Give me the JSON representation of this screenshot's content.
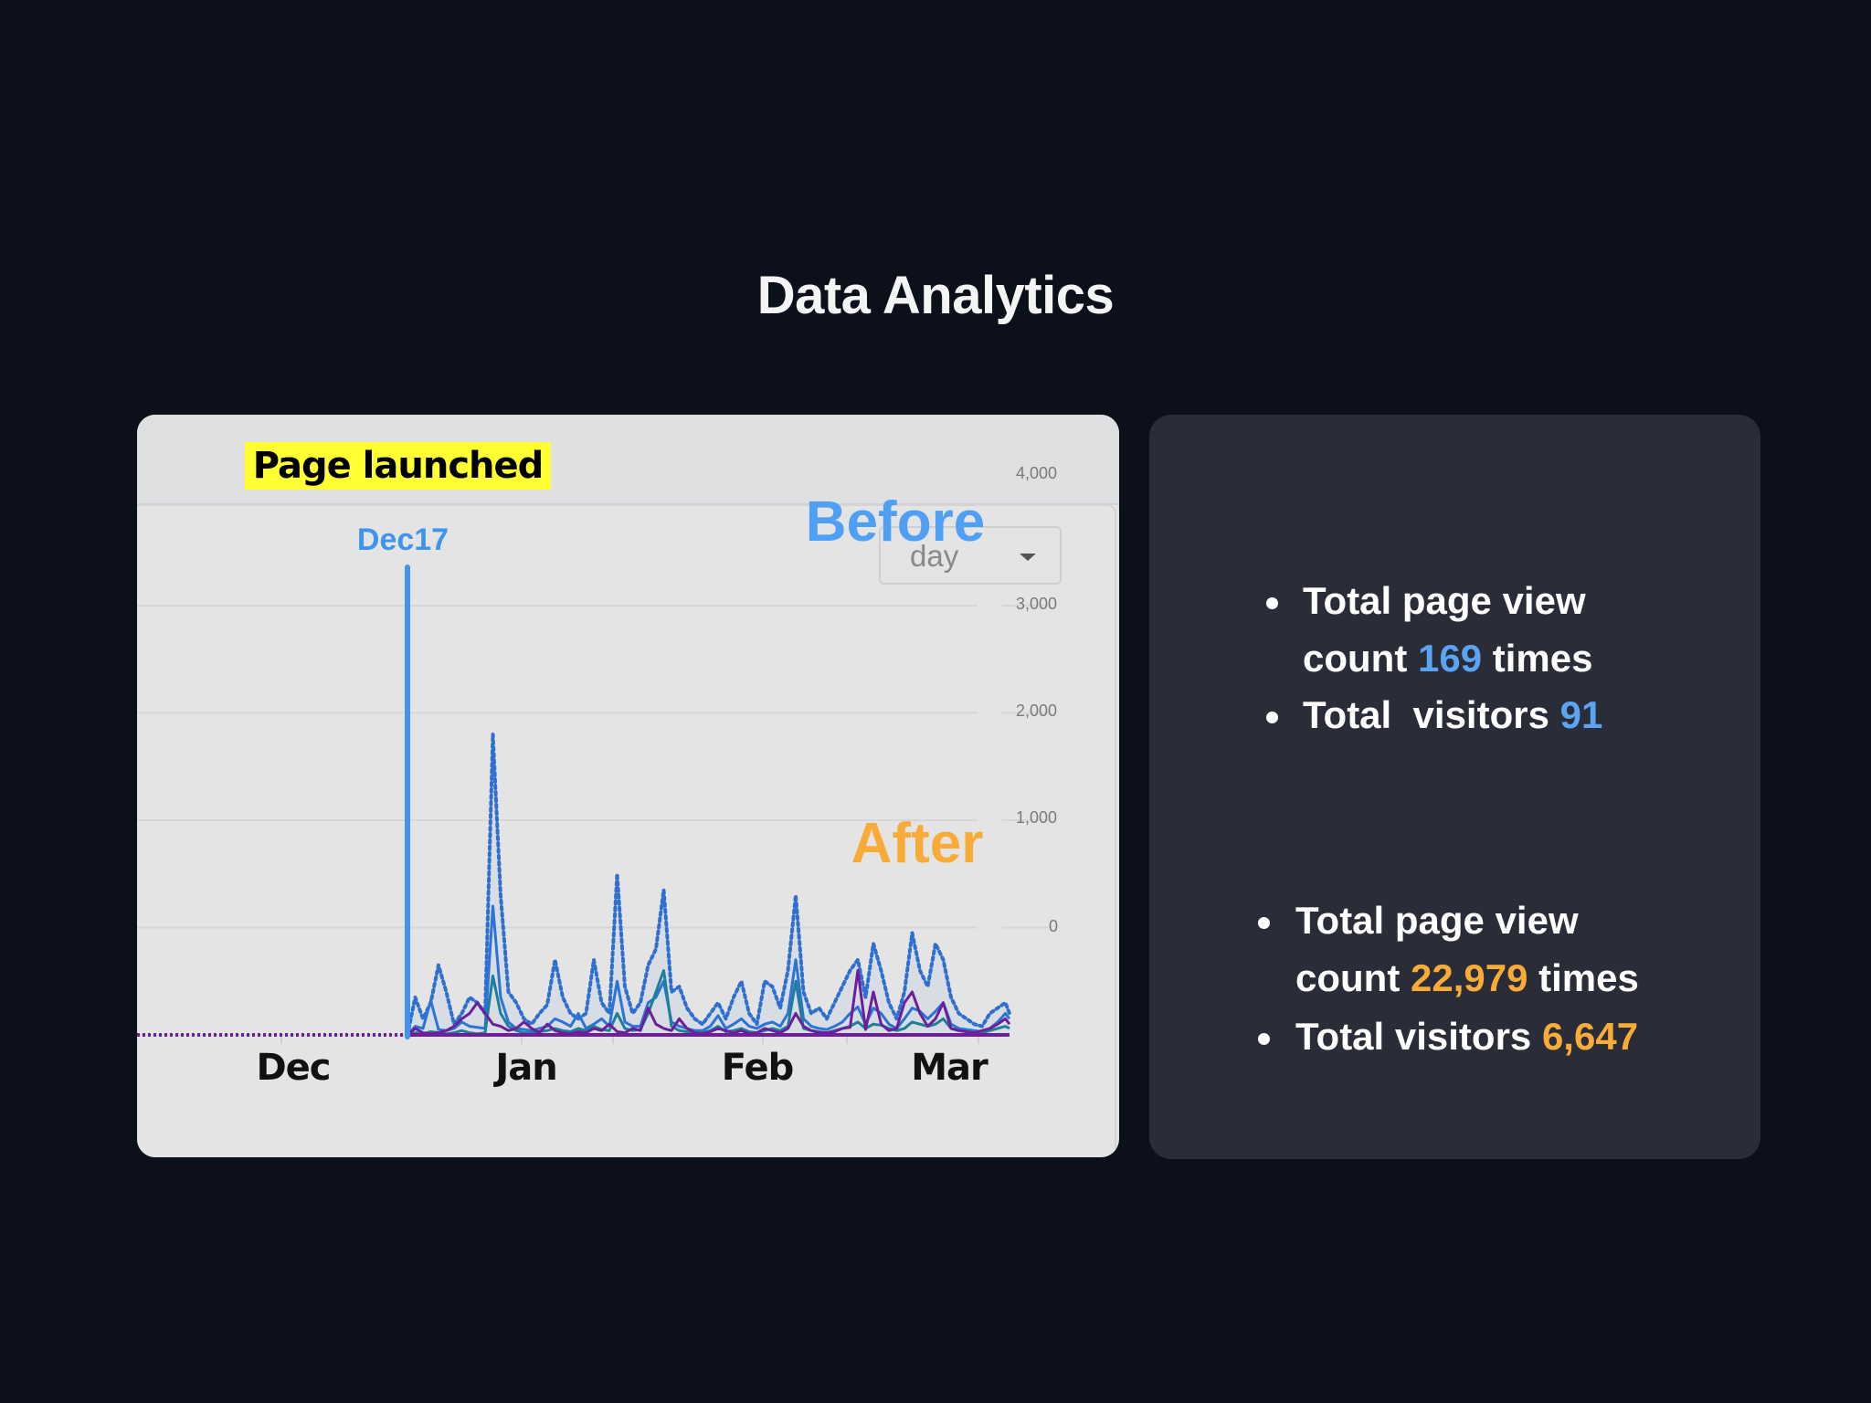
{
  "page": {
    "title": "Data Analytics"
  },
  "chart_card": {
    "annotation": "Page launched",
    "launch_marker": "Dec17",
    "granularity_select": {
      "selected": "day"
    }
  },
  "stats": {
    "before": {
      "heading": "Before",
      "page_views_prefix_1": "Total page view",
      "page_views_prefix_2": "count ",
      "page_views_value": "169",
      "page_views_suffix": " times",
      "visitors_prefix": "Total  visitors ",
      "visitors_value": "91"
    },
    "after": {
      "heading": "After",
      "page_views_prefix_1": "Total page view",
      "page_views_prefix_2": "count ",
      "page_views_value": "22,979",
      "page_views_suffix": " times",
      "visitors_prefix": "Total visitors ",
      "visitors_value": "6,647"
    }
  },
  "colors": {
    "background": "#0b101b",
    "before_accent": "#4fa0f2",
    "after_accent": "#f9ab38",
    "launch_line": "#3f94ec",
    "annotation_bg": "#ffff33"
  },
  "chart_data": {
    "type": "line",
    "title": "",
    "annotation": {
      "label": "Page launched",
      "x": "Dec17"
    },
    "xlabel": "",
    "ylabel": "",
    "x_ticks": [
      "Dec",
      "Jan",
      "Feb",
      "Mar"
    ],
    "y_ticks": [
      0,
      1000,
      2000,
      3000,
      4000
    ],
    "ylim": [
      0,
      4000
    ],
    "grid": true,
    "y_axis_position": "right",
    "x_start": "Dec17",
    "x_step": "day",
    "series": [
      {
        "name": "series-dotted-blue",
        "style": "dotted",
        "color": "#2f6fd0",
        "values": [
          0,
          350,
          150,
          300,
          650,
          400,
          100,
          200,
          350,
          300,
          200,
          2800,
          1300,
          400,
          300,
          150,
          100,
          200,
          280,
          700,
          350,
          200,
          150,
          200,
          700,
          300,
          200,
          1500,
          450,
          200,
          300,
          650,
          800,
          1350,
          400,
          450,
          250,
          150,
          100,
          200,
          300,
          150,
          350,
          500,
          200,
          100,
          500,
          450,
          250,
          600,
          1300,
          400,
          200,
          250,
          150,
          300,
          450,
          600,
          700,
          350,
          850,
          600,
          300,
          150,
          400,
          950,
          600,
          450,
          850,
          700,
          350,
          200,
          150,
          100,
          80,
          200,
          250,
          300,
          200
        ]
      },
      {
        "name": "series-blue",
        "style": "solid",
        "color": "#2b74d6",
        "values": [
          0,
          80,
          60,
          320,
          50,
          40,
          60,
          120,
          80,
          70,
          60,
          1200,
          350,
          120,
          60,
          50,
          40,
          60,
          80,
          150,
          120,
          80,
          200,
          60,
          100,
          150,
          80,
          500,
          120,
          80,
          80,
          300,
          350,
          500,
          120,
          80,
          60,
          40,
          40,
          80,
          180,
          60,
          100,
          150,
          80,
          60,
          100,
          120,
          80,
          200,
          700,
          150,
          80,
          60,
          50,
          80,
          120,
          200,
          260,
          100,
          250,
          200,
          100,
          60,
          150,
          250,
          220,
          150,
          220,
          300,
          100,
          60,
          50,
          40,
          30,
          60,
          120,
          200,
          150
        ]
      },
      {
        "name": "series-teal",
        "style": "solid",
        "color": "#1f7f9a",
        "values": [
          0,
          20,
          10,
          30,
          20,
          10,
          20,
          40,
          20,
          10,
          20,
          550,
          200,
          80,
          40,
          20,
          20,
          30,
          40,
          60,
          40,
          30,
          60,
          40,
          80,
          50,
          40,
          200,
          60,
          40,
          50,
          200,
          400,
          600,
          80,
          40,
          30,
          20,
          20,
          40,
          80,
          30,
          40,
          60,
          30,
          20,
          40,
          60,
          40,
          80,
          500,
          60,
          40,
          30,
          20,
          40,
          60,
          80,
          120,
          60,
          100,
          90,
          60,
          40,
          60,
          120,
          100,
          80,
          100,
          150,
          60,
          40,
          30,
          20,
          20,
          40,
          60,
          80,
          60
        ]
      },
      {
        "name": "series-purple",
        "style": "solid",
        "color": "#6d1f9a",
        "values": [
          0,
          60,
          20,
          10,
          20,
          40,
          80,
          150,
          200,
          300,
          200,
          100,
          80,
          40,
          60,
          120,
          60,
          20,
          100,
          40,
          20,
          10,
          30,
          20,
          60,
          40,
          100,
          30,
          20,
          60,
          40,
          250,
          100,
          60,
          40,
          150,
          60,
          20,
          10,
          30,
          60,
          40,
          20,
          40,
          10,
          20,
          60,
          40,
          20,
          60,
          200,
          80,
          40,
          20,
          20,
          30,
          60,
          70,
          600,
          50,
          400,
          100,
          40,
          60,
          300,
          400,
          200,
          80,
          150,
          300,
          60,
          40,
          30,
          20,
          40,
          60,
          100,
          150,
          100
        ]
      }
    ]
  }
}
